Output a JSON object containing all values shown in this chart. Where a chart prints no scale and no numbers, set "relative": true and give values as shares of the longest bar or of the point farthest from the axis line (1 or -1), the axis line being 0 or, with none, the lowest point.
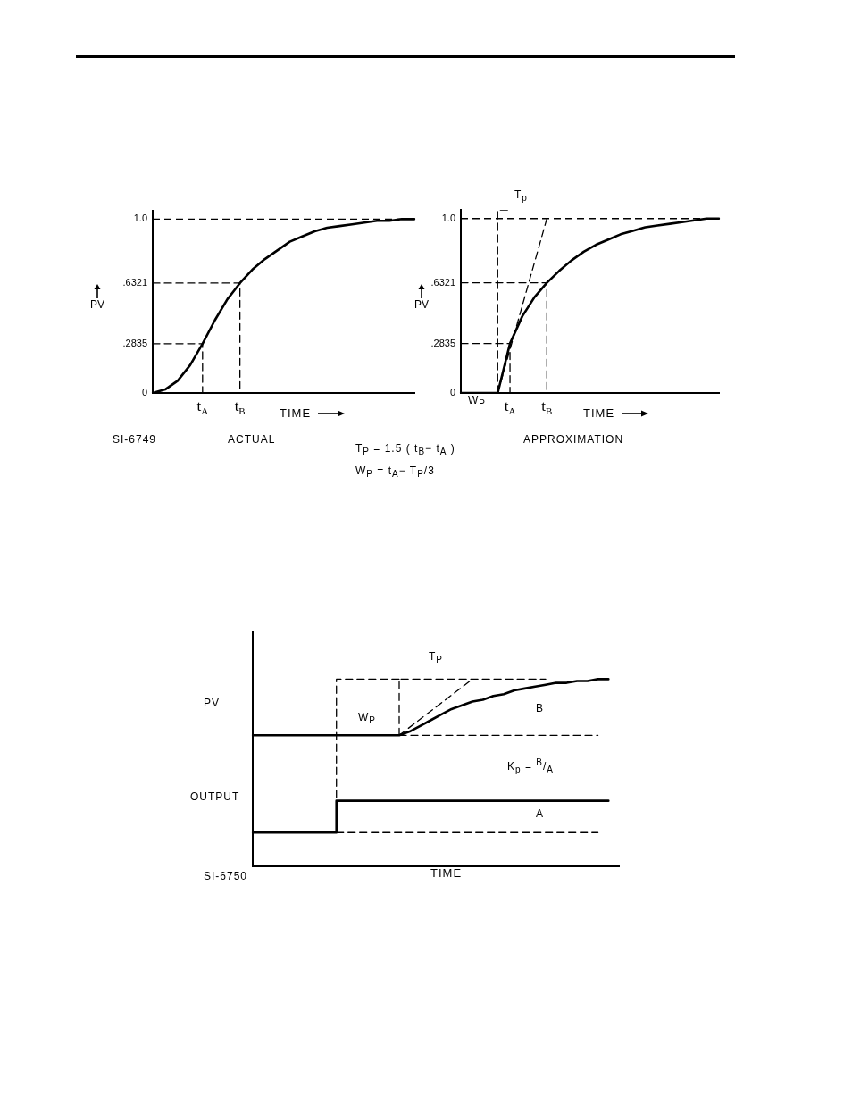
{
  "chart_data": [
    {
      "type": "line",
      "xlabel": "TIME",
      "ylabel": "PV",
      "marker": "none",
      "legend": false,
      "ylim": [
        0,
        1.05
      ],
      "categories": [
        null,
        null,
        null,
        null,
        "t$_{A}$",
        null,
        null,
        "t$_{B}$",
        null,
        null,
        null,
        null,
        null,
        null,
        null,
        null,
        null,
        null,
        null,
        null,
        null,
        null
      ],
      "yticks": [
        0,
        {
          "value": 0.2835,
          "label": ".2835"
        },
        {
          "value": 0.6321,
          "label": ".6321"
        },
        {
          "value": 1.0,
          "label": "1.0"
        }
      ],
      "ref_lines": [
        {
          "axis": "y",
          "value": 1.0,
          "line_style": "dashed",
          "color": "#000000"
        }
      ],
      "series": [
        {
          "color": "#000000",
          "line_style": "solid",
          "values": [
            0,
            0.02,
            0.07,
            0.16,
            0.2835,
            0.42,
            0.54,
            0.6321,
            0.71,
            0.77,
            0.82,
            0.87,
            0.9,
            0.93,
            0.95,
            0.96,
            0.97,
            0.98,
            0.99,
            0.99,
            1.0,
            1.0
          ]
        },
        {
          "type": "step",
          "color": "#000000",
          "line_style": "dashed",
          "values": [
            0.2835,
            null,
            null,
            null,
            0,
            null,
            null,
            null,
            null,
            null,
            null,
            null,
            null,
            null,
            null,
            null,
            null,
            null,
            null,
            null,
            null,
            null
          ]
        },
        {
          "type": "step",
          "color": "#000000",
          "line_style": "dashed",
          "values": [
            0.6321,
            null,
            null,
            null,
            null,
            null,
            null,
            0,
            null,
            null,
            null,
            null,
            null,
            null,
            null,
            null,
            null,
            null,
            null,
            null,
            null,
            null
          ]
        }
      ],
      "annotations": [
        "SI-6749",
        "ACTUAL"
      ]
    },
    {
      "type": "line",
      "xlabel": "TIME",
      "ylabel": "PV",
      "marker": "none",
      "legend": false,
      "ylim": [
        0,
        1.05
      ],
      "categories": [
        null,
        null,
        null,
        null,
        "t$_{A}$",
        null,
        null,
        "t$_{B}$",
        null,
        null,
        null,
        null,
        null,
        null,
        null,
        null,
        null,
        null,
        null,
        null,
        null,
        null
      ],
      "yticks": [
        0,
        {
          "value": 0.2835,
          "label": ".2835"
        },
        {
          "value": 0.6321,
          "label": ".6321"
        },
        {
          "value": 1.0,
          "label": "1.0"
        }
      ],
      "ref_lines": [
        {
          "axis": "y",
          "value": 1.0,
          "line_style": "dashed",
          "color": "#000000"
        }
      ],
      "series": [
        {
          "color": "#000000",
          "line_style": "solid",
          "values": [
            0,
            0,
            0,
            0,
            0.2835,
            0.44,
            0.55,
            0.6321,
            0.7,
            0.76,
            0.81,
            0.85,
            0.88,
            0.91,
            0.93,
            0.95,
            0.96,
            0.97,
            0.98,
            0.99,
            1.0,
            1.0
          ]
        },
        {
          "type": "step",
          "color": "#000000",
          "line_style": "dashed",
          "values": [
            0.2835,
            null,
            null,
            null,
            0,
            null,
            null,
            null,
            null,
            null,
            null,
            null,
            null,
            null,
            null,
            null,
            null,
            null,
            null,
            null,
            null,
            null
          ]
        },
        {
          "type": "step",
          "color": "#000000",
          "line_style": "dashed",
          "values": [
            0.6321,
            null,
            null,
            null,
            null,
            null,
            null,
            0,
            null,
            null,
            null,
            null,
            null,
            null,
            null,
            null,
            null,
            null,
            null,
            null,
            null,
            null
          ]
        },
        {
          "type": "step",
          "color": "#000000",
          "line_style": "dashed",
          "values": [
            null,
            null,
            null,
            0,
            1.05,
            null,
            null,
            null,
            null,
            null,
            null,
            null,
            null,
            null,
            null,
            null,
            null,
            null,
            null,
            null,
            null,
            null
          ]
        },
        {
          "color": "#000000",
          "line_style": "dashed",
          "values": [
            null,
            null,
            null,
            0,
            null,
            null,
            null,
            1.0,
            null,
            null,
            null,
            null,
            null,
            null,
            null,
            null,
            null,
            null,
            null,
            null,
            null,
            null
          ]
        }
      ],
      "annotations": [
        "W$_{P}$",
        "T$_{p}$",
        "APPROXIMATION",
        "T$_{P}$ = 1.5 ( t$_{B}$− t$_{A}$ )",
        "W$_{P}$ = t$_{A}$− T$_{P}$/3"
      ]
    },
    {
      "type": "line",
      "relative": true,
      "xlabel": "TIME",
      "marker": "none",
      "legend": false,
      "categories": [
        null,
        null,
        null,
        null,
        null,
        null,
        null,
        null,
        null,
        null,
        null,
        null,
        null,
        null,
        null,
        null,
        null,
        null,
        null,
        null,
        null,
        null,
        null,
        null,
        null,
        null,
        null,
        null,
        null,
        null,
        null,
        null,
        null,
        null,
        null,
        null
      ],
      "series": [
        {
          "color": "#000000",
          "line_style": "solid",
          "values": [
            0.7,
            0.7,
            0.7,
            0.7,
            0.7,
            0.7,
            0.7,
            0.7,
            0.7,
            0.7,
            0.7,
            0.7,
            0.7,
            0.7,
            0.7,
            0.72,
            0.75,
            0.78,
            0.81,
            0.84,
            0.86,
            0.88,
            0.89,
            0.91,
            0.92,
            0.94,
            0.95,
            0.96,
            0.97,
            0.98,
            0.98,
            0.99,
            0.99,
            1.0,
            1.0,
            null
          ]
        },
        {
          "type": "step",
          "color": "#000000",
          "line_style": "solid",
          "values": [
            0.18,
            0.18,
            0.18,
            0.18,
            0.18,
            0.18,
            0.18,
            0.18,
            0.18,
            0.35,
            0.35,
            0.35,
            0.35,
            0.35,
            0.35,
            0.35,
            0.35,
            0.35,
            0.35,
            0.35,
            0.35,
            0.35,
            0.35,
            0.35,
            0.35,
            0.35,
            0.35,
            0.35,
            0.35,
            0.35,
            0.35,
            0.35,
            0.35,
            0.35,
            0.35,
            null
          ]
        },
        {
          "type": "step",
          "color": "#000000",
          "line_style": "dashed",
          "values": [
            null,
            null,
            null,
            null,
            null,
            null,
            null,
            null,
            0.18,
            null,
            null,
            null,
            null,
            null,
            1.0,
            null,
            null,
            null,
            null,
            null,
            null,
            null,
            null,
            null,
            null,
            null,
            null,
            null,
            null,
            null,
            null,
            null,
            null,
            null,
            null,
            null
          ]
        },
        {
          "type": "step",
          "color": "#000000",
          "line_style": "dashed",
          "values": [
            null,
            null,
            null,
            null,
            null,
            null,
            null,
            null,
            null,
            null,
            null,
            null,
            null,
            null,
            0.7,
            null,
            null,
            null,
            null,
            null,
            null,
            null,
            null,
            null,
            null,
            null,
            null,
            null,
            1.0,
            null,
            null,
            null,
            null,
            null,
            null,
            null
          ]
        },
        {
          "color": "#000000",
          "line_style": "dashed",
          "values": [
            null,
            null,
            null,
            null,
            null,
            null,
            null,
            null,
            null,
            null,
            null,
            null,
            null,
            null,
            0.7,
            null,
            null,
            null,
            null,
            null,
            null,
            null,
            null,
            null,
            null,
            null,
            null,
            null,
            null,
            null,
            null,
            null,
            null,
            0.7,
            null,
            null
          ]
        },
        {
          "color": "#000000",
          "line_style": "dashed",
          "values": [
            null,
            null,
            null,
            null,
            null,
            null,
            null,
            null,
            0.18,
            null,
            null,
            null,
            null,
            null,
            null,
            null,
            null,
            null,
            null,
            null,
            null,
            null,
            null,
            null,
            null,
            null,
            null,
            null,
            null,
            null,
            null,
            null,
            null,
            0.18,
            null,
            null
          ]
        },
        {
          "color": "#000000",
          "line_style": "dashed",
          "values": [
            null,
            null,
            null,
            null,
            null,
            null,
            null,
            null,
            null,
            null,
            null,
            null,
            null,
            null,
            0.7,
            null,
            null,
            null,
            null,
            null,
            null,
            1.0,
            null,
            null,
            null,
            null,
            null,
            null,
            null,
            null,
            null,
            null,
            null,
            null,
            null,
            null
          ]
        }
      ],
      "annotations": [
        "T$_{P}$",
        "W$_{P}$",
        "B",
        "A",
        "K$_{p}$ = $^{B}$/$_{A}$",
        "PV",
        "OUTPUT",
        "SI-6750"
      ]
    }
  ]
}
